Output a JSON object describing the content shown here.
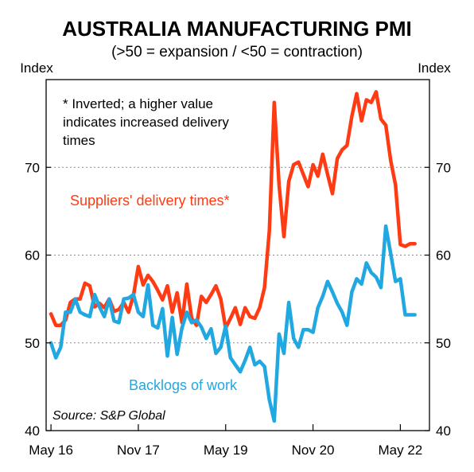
{
  "chart_data": {
    "type": "line",
    "title": "AUSTRALIA MANUFACTURING PMI",
    "subtitle": "(>50 = expansion / <50 = contraction)",
    "ylabel_left": "Index",
    "ylabel_right": "Index",
    "ylim": [
      40,
      80
    ],
    "yticks": [
      40,
      50,
      60,
      70
    ],
    "xlim": [
      "2016-04",
      "2022-11"
    ],
    "xticks": [
      {
        "date": "2016-05",
        "label": "May 16"
      },
      {
        "date": "2017-11",
        "label": "Nov 17"
      },
      {
        "date": "2019-05",
        "label": "May 19"
      },
      {
        "date": "2020-11",
        "label": "Nov 20"
      },
      {
        "date": "2022-05",
        "label": "May 22"
      }
    ],
    "grid": true,
    "note_lines": [
      "*   Inverted; a higher value",
      "indicates increased delivery",
      "times"
    ],
    "source": "Source: S&P Global",
    "series": [
      {
        "name": "Suppliers' delivery times*",
        "color": "#ff3b14",
        "x": [
          "2016-05",
          "2016-06",
          "2016-07",
          "2016-08",
          "2016-09",
          "2016-10",
          "2016-11",
          "2016-12",
          "2017-01",
          "2017-02",
          "2017-03",
          "2017-04",
          "2017-05",
          "2017-06",
          "2017-07",
          "2017-08",
          "2017-09",
          "2017-10",
          "2017-11",
          "2017-12",
          "2018-01",
          "2018-02",
          "2018-03",
          "2018-04",
          "2018-05",
          "2018-06",
          "2018-07",
          "2018-08",
          "2018-09",
          "2018-10",
          "2018-11",
          "2018-12",
          "2019-01",
          "2019-02",
          "2019-03",
          "2019-04",
          "2019-05",
          "2019-06",
          "2019-07",
          "2019-08",
          "2019-09",
          "2019-10",
          "2019-11",
          "2019-12",
          "2020-01",
          "2020-02",
          "2020-03",
          "2020-04",
          "2020-05",
          "2020-06",
          "2020-07",
          "2020-08",
          "2020-09",
          "2020-10",
          "2020-11",
          "2020-12",
          "2021-01",
          "2021-02",
          "2021-03",
          "2021-04",
          "2021-05",
          "2021-06",
          "2021-07",
          "2021-08",
          "2021-09",
          "2021-10",
          "2021-11",
          "2021-12",
          "2022-01",
          "2022-02",
          "2022-03",
          "2022-04",
          "2022-05",
          "2022-06",
          "2022-07",
          "2022-08"
        ],
        "values": [
          53.3,
          52.0,
          52.0,
          52.6,
          54.6,
          55.0,
          55.0,
          56.8,
          56.5,
          54.1,
          54.5,
          54.0,
          55.0,
          53.6,
          53.8,
          54.6,
          53.5,
          55.4,
          58.7,
          56.6,
          57.7,
          57.0,
          56.0,
          54.9,
          56.5,
          53.5,
          55.7,
          52.3,
          56.7,
          52.8,
          52.0,
          55.3,
          54.6,
          55.5,
          56.5,
          55.0,
          51.7,
          52.8,
          54.0,
          52.1,
          54.0,
          53.0,
          52.8,
          54.0,
          56.3,
          62.8,
          77.4,
          68.0,
          62.1,
          68.4,
          70.3,
          70.6,
          69.2,
          67.8,
          70.3,
          69.0,
          71.5,
          69.2,
          67.0,
          71.0,
          72.0,
          72.5,
          75.8,
          78.4,
          75.3,
          77.7,
          77.4,
          78.6,
          75.5,
          74.8,
          70.8,
          68.0,
          61.2,
          61.0,
          61.3,
          61.3
        ]
      },
      {
        "name": "Backlogs of work",
        "color": "#22a8e0",
        "x": [
          "2016-05",
          "2016-06",
          "2016-07",
          "2016-08",
          "2016-09",
          "2016-10",
          "2016-11",
          "2016-12",
          "2017-01",
          "2017-02",
          "2017-03",
          "2017-04",
          "2017-05",
          "2017-06",
          "2017-07",
          "2017-08",
          "2017-09",
          "2017-10",
          "2017-11",
          "2017-12",
          "2018-01",
          "2018-02",
          "2018-03",
          "2018-04",
          "2018-05",
          "2018-06",
          "2018-07",
          "2018-08",
          "2018-09",
          "2018-10",
          "2018-11",
          "2018-12",
          "2019-01",
          "2019-02",
          "2019-03",
          "2019-04",
          "2019-05",
          "2019-06",
          "2019-07",
          "2019-08",
          "2019-09",
          "2019-10",
          "2019-11",
          "2019-12",
          "2020-01",
          "2020-02",
          "2020-03",
          "2020-04",
          "2020-05",
          "2020-06",
          "2020-07",
          "2020-08",
          "2020-09",
          "2020-10",
          "2020-11",
          "2020-12",
          "2021-01",
          "2021-02",
          "2021-03",
          "2021-04",
          "2021-05",
          "2021-06",
          "2021-07",
          "2021-08",
          "2021-09",
          "2021-10",
          "2021-11",
          "2021-12",
          "2022-01",
          "2022-02",
          "2022-03",
          "2022-04",
          "2022-05",
          "2022-06",
          "2022-07",
          "2022-08"
        ],
        "values": [
          50.0,
          48.3,
          49.5,
          53.5,
          53.5,
          55.0,
          53.5,
          53.2,
          53.0,
          55.5,
          54.1,
          53.0,
          55.0,
          52.5,
          52.3,
          55.0,
          55.1,
          55.5,
          53.5,
          53.0,
          56.6,
          52.0,
          51.7,
          53.9,
          48.5,
          52.9,
          48.7,
          51.7,
          53.5,
          52.3,
          52.6,
          51.8,
          50.5,
          51.6,
          48.8,
          49.5,
          51.9,
          48.3,
          47.5,
          46.7,
          48.0,
          49.5,
          47.5,
          47.9,
          47.3,
          43.5,
          41.1,
          51.0,
          48.8,
          54.6,
          50.5,
          49.5,
          51.5,
          51.5,
          51.2,
          54.0,
          55.3,
          57.0,
          55.8,
          54.5,
          53.5,
          52.0,
          55.8,
          57.3,
          56.7,
          59.1,
          58.0,
          57.5,
          56.3,
          63.3,
          60.2,
          57.0,
          57.3,
          53.2,
          53.2,
          53.2
        ]
      }
    ]
  }
}
